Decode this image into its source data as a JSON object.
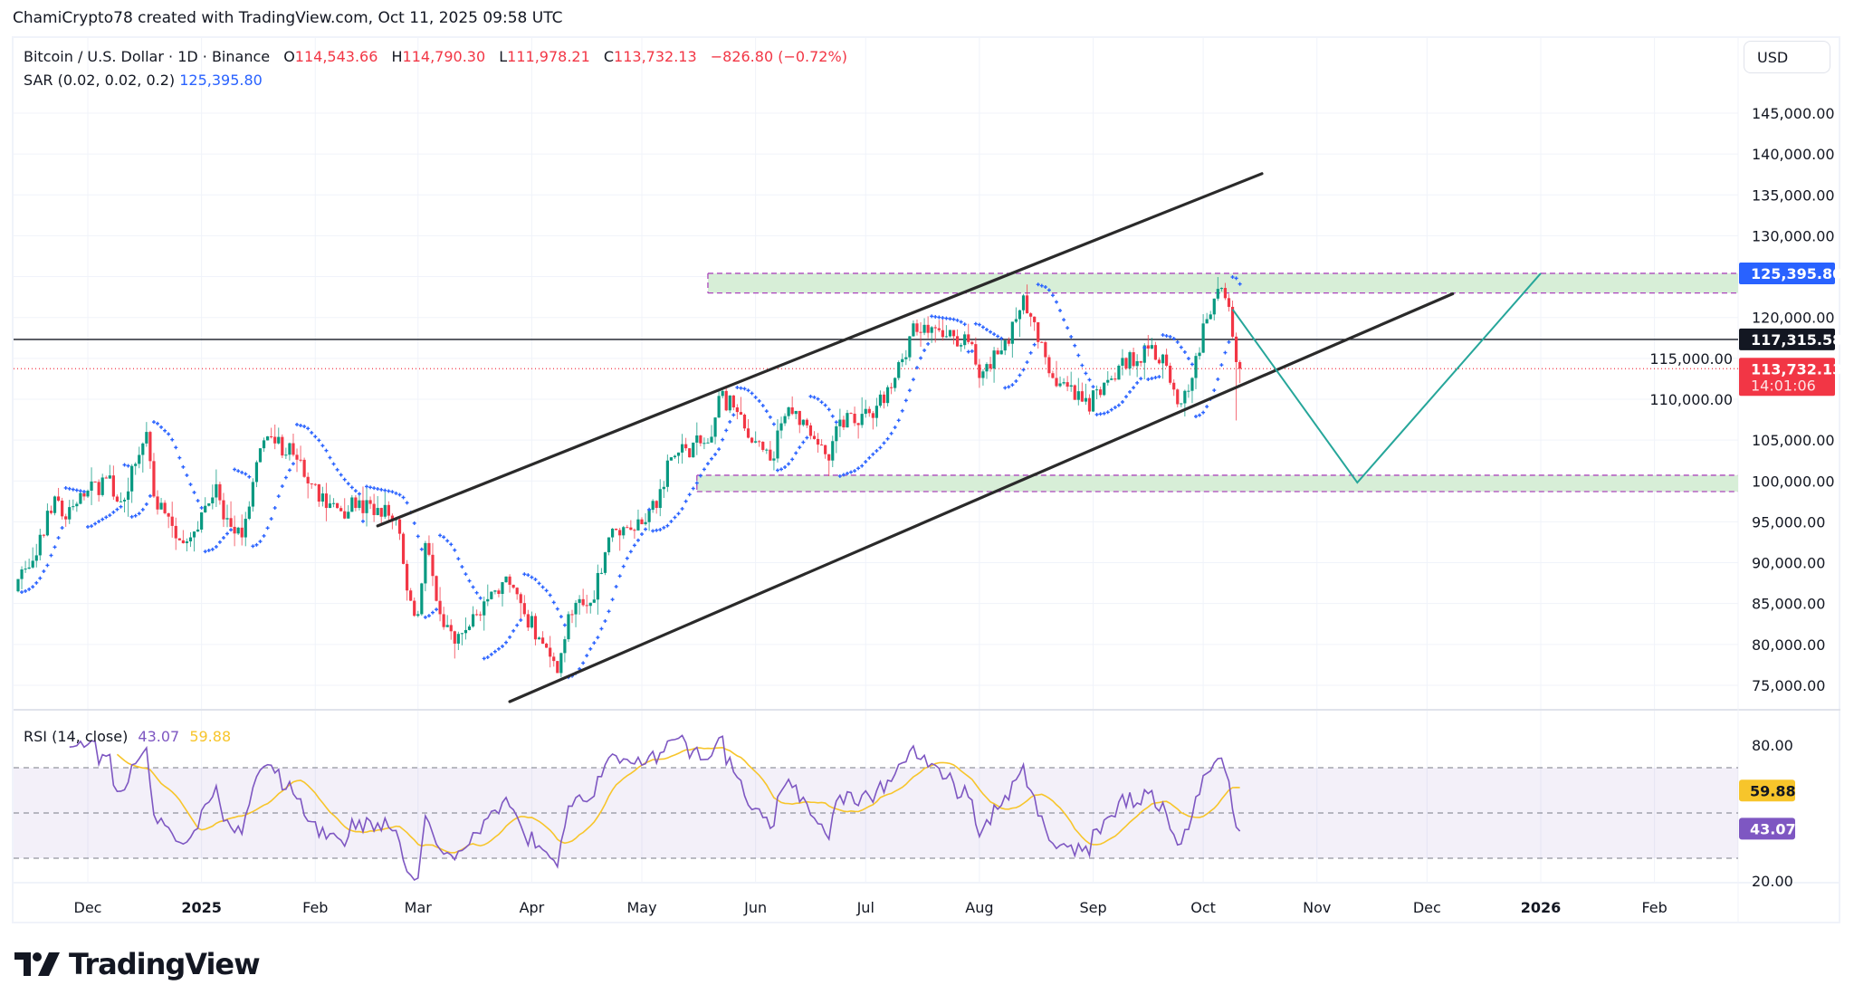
{
  "attribution": "ChamiCrypto78 created with TradingView.com, Oct 11, 2025 09:58 UTC",
  "legend": {
    "symbol": "Bitcoin / U.S. Dollar · 1D · Binance",
    "o_label": "O",
    "o": "114,543.66",
    "h_label": "H",
    "h": "114,790.30",
    "l_label": "L",
    "l": "111,978.21",
    "c_label": "C",
    "c": "113,732.13",
    "change": "−826.80 (−0.72%)",
    "sar_label": "SAR (0.02, 0.02, 0.2)",
    "sar_value": "125,395.80"
  },
  "rsi_legend": {
    "label": "RSI (14, close)",
    "rsi": "43.07",
    "ma": "59.88"
  },
  "currency_button": "USD",
  "logo_text": "TradingView",
  "colors": {
    "up": "#089981",
    "down": "#f23645",
    "sar": "#2962ff",
    "rsi": "#7e57c2",
    "rsi_ma": "#f7c52b",
    "zone": "#d7eed7",
    "zone_border": "#ab47bc",
    "projection": "#26a69a",
    "channel": "#2a2a2a"
  },
  "price_axis": {
    "ticks": [
      "145,000.00",
      "140,000.00",
      "135,000.00",
      "130,000.00",
      "120,000.00",
      "115,000.00",
      "110,000.00",
      "105,000.00",
      "100,000.00",
      "95,000.00",
      "90,000.00",
      "85,000.00",
      "80,000.00",
      "75,000.00"
    ],
    "tick_values": [
      145000,
      140000,
      135000,
      130000,
      120000,
      115000,
      110000,
      105000,
      100000,
      95000,
      90000,
      85000,
      80000,
      75000
    ],
    "tags": [
      {
        "label": "125,395.80",
        "value": 125395.8,
        "color": "#2962ff"
      },
      {
        "label": "117,315.58",
        "value": 117315.58,
        "color": "#131722"
      },
      {
        "label": "113,732.13",
        "sub": "14:01:06",
        "value": 113732.13,
        "color": "#f23645"
      }
    ]
  },
  "rsi_axis": {
    "ticks": [
      "80.00",
      "20.00"
    ],
    "tick_values": [
      80,
      20
    ],
    "tags": [
      {
        "label": "59.88",
        "value": 59.88,
        "color": "#f7c52b",
        "text": "#131722"
      },
      {
        "label": "43.07",
        "value": 43.07,
        "color": "#7e57c2",
        "text": "#ffffff"
      }
    ]
  },
  "time_axis": {
    "labels": [
      "Dec",
      "2025",
      "Feb",
      "Mar",
      "Apr",
      "May",
      "Jun",
      "Jul",
      "Aug",
      "Sep",
      "Oct",
      "Nov",
      "Dec",
      "2026",
      "Feb"
    ],
    "dates": [
      "2024-12-01",
      "2025-01-01",
      "2025-02-01",
      "2025-03-01",
      "2025-04-01",
      "2025-05-01",
      "2025-06-01",
      "2025-07-01",
      "2025-08-01",
      "2025-09-01",
      "2025-10-01",
      "2025-11-01",
      "2025-12-01",
      "2026-01-01",
      "2026-02-01"
    ]
  },
  "chart_data": {
    "type": "candlestick",
    "title": "Bitcoin / U.S. Dollar · 1D · Binance",
    "ylim": [
      72000,
      148000
    ],
    "indicators": [
      "Parabolic SAR (0.02, 0.02, 0.2)",
      "RSI (14, close) with MA"
    ],
    "approx_closes": [
      [
        "2024-11-12",
        88000
      ],
      [
        "2024-11-17",
        90900
      ],
      [
        "2024-11-22",
        98100
      ],
      [
        "2024-11-25",
        95300
      ],
      [
        "2024-11-30",
        98100
      ],
      [
        "2024-12-06",
        100300
      ],
      [
        "2024-12-10",
        97500
      ],
      [
        "2024-12-17",
        106000
      ],
      [
        "2024-12-19",
        98100
      ],
      [
        "2024-12-24",
        94500
      ],
      [
        "2024-12-29",
        93100
      ],
      [
        "2025-01-05",
        99600
      ],
      [
        "2025-01-07",
        95300
      ],
      [
        "2025-01-12",
        93100
      ],
      [
        "2025-01-17",
        104000
      ],
      [
        "2025-01-20",
        105400
      ],
      [
        "2025-01-26",
        103200
      ],
      [
        "2025-02-01",
        99600
      ],
      [
        "2025-02-04",
        96700
      ],
      [
        "2025-02-12",
        96700
      ],
      [
        "2025-02-18",
        96700
      ],
      [
        "2025-02-23",
        95300
      ],
      [
        "2025-02-26",
        86600
      ],
      [
        "2025-03-01",
        83700
      ],
      [
        "2025-03-03",
        92400
      ],
      [
        "2025-03-07",
        83700
      ],
      [
        "2025-03-11",
        80100
      ],
      [
        "2025-03-16",
        83700
      ],
      [
        "2025-03-22",
        86600
      ],
      [
        "2025-03-26",
        87300
      ],
      [
        "2025-03-30",
        83700
      ],
      [
        "2025-04-06",
        78500
      ],
      [
        "2025-04-08",
        76500
      ],
      [
        "2025-04-11",
        83700
      ],
      [
        "2025-04-17",
        85100
      ],
      [
        "2025-04-22",
        93100
      ],
      [
        "2025-04-30",
        95300
      ],
      [
        "2025-05-05",
        96700
      ],
      [
        "2025-05-08",
        102500
      ],
      [
        "2025-05-13",
        104000
      ],
      [
        "2025-05-19",
        104700
      ],
      [
        "2025-05-22",
        110400
      ],
      [
        "2025-05-26",
        109000
      ],
      [
        "2025-05-31",
        104700
      ],
      [
        "2025-06-05",
        102500
      ],
      [
        "2025-06-10",
        109000
      ],
      [
        "2025-06-15",
        106800
      ],
      [
        "2025-06-21",
        102500
      ],
      [
        "2025-06-24",
        107500
      ],
      [
        "2025-07-02",
        108300
      ],
      [
        "2025-07-09",
        112600
      ],
      [
        "2025-07-13",
        117700
      ],
      [
        "2025-07-17",
        119100
      ],
      [
        "2025-07-23",
        117700
      ],
      [
        "2025-07-29",
        117000
      ],
      [
        "2025-08-01",
        112600
      ],
      [
        "2025-08-06",
        115500
      ],
      [
        "2025-08-11",
        119800
      ],
      [
        "2025-08-13",
        122700
      ],
      [
        "2025-08-17",
        117000
      ],
      [
        "2025-08-21",
        112600
      ],
      [
        "2025-08-31",
        108500
      ],
      [
        "2025-09-02",
        111200
      ],
      [
        "2025-09-08",
        114100
      ],
      [
        "2025-09-16",
        116200
      ],
      [
        "2025-09-21",
        114100
      ],
      [
        "2025-09-25",
        109500
      ],
      [
        "2025-09-28",
        112600
      ],
      [
        "2025-10-02",
        119800
      ],
      [
        "2025-10-05",
        123500
      ],
      [
        "2025-10-08",
        121300
      ],
      [
        "2025-10-10",
        114543.66
      ]
    ],
    "last_candle": {
      "date": "2025-10-11",
      "open": 114543.66,
      "high": 114790.3,
      "low": 111978.21,
      "close": 113732.13
    },
    "drawings": {
      "channel_upper": [
        [
          "2025-02-18",
          94500
        ],
        [
          "2025-10-17",
          137600
        ]
      ],
      "channel_lower": [
        [
          "2025-03-26",
          73000
        ],
        [
          "2025-12-08",
          122900
        ]
      ],
      "horizontal_line": 117315.58,
      "last_price_line": 113732.13,
      "zone_upper": {
        "from": "2025-05-19",
        "top": 125400,
        "bottom": 123000
      },
      "zone_lower": {
        "from": "2025-05-16",
        "top": 100700,
        "bottom": 98700
      },
      "projection": [
        [
          "2025-10-09",
          121000
        ],
        [
          "2025-11-12",
          99800
        ],
        [
          "2026-01-01",
          125400
        ]
      ]
    },
    "rsi_levels": [
      70,
      50,
      30
    ],
    "rsi_ylim": [
      20,
      80
    ]
  }
}
